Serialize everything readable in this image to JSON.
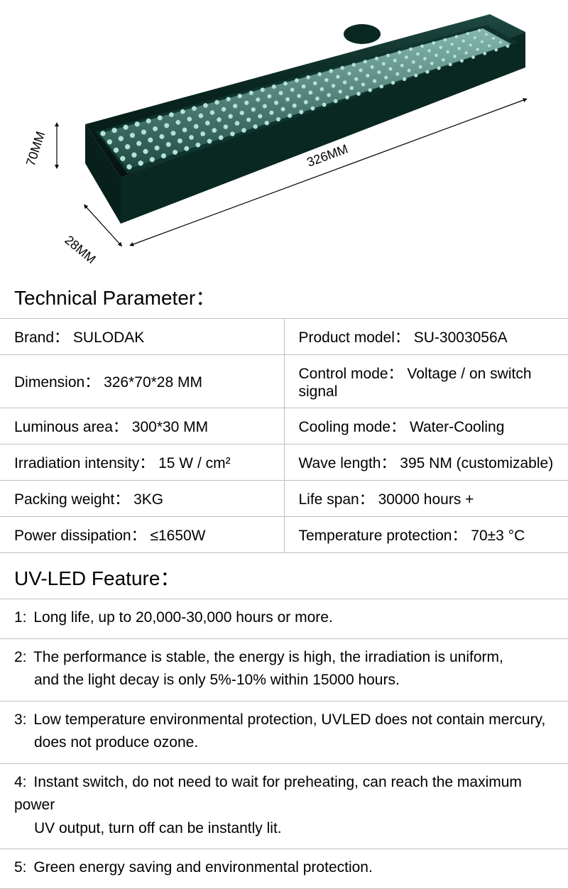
{
  "dimensions": {
    "height_label": "70MM",
    "depth_label": "28MM",
    "length_label": "326MM"
  },
  "device_colors": {
    "body": "#0a2822",
    "body_highlight": "#183d36",
    "panel_bg": "#2a6158",
    "led_color": "#b6e2da",
    "led_inner": "#7db7ad"
  },
  "sections": {
    "tech_title": "Technical Parameter：",
    "feature_title": "UV-LED Feature："
  },
  "specs": [
    {
      "l_label": "Brand：",
      "l_value": "SULODAK",
      "r_label": "Product model：",
      "r_value": "SU-3003056A"
    },
    {
      "l_label": "Dimension：",
      "l_value": "326*70*28 MM",
      "r_label": "Control mode：",
      "r_value": "Voltage / on switch signal"
    },
    {
      "l_label": "Luminous area：",
      "l_value": "300*30 MM",
      "r_label": "Cooling mode：",
      "r_value": "Water-Cooling"
    },
    {
      "l_label": "Irradiation intensity：",
      "l_value": "15 W / cm²",
      "r_label": "Wave length：",
      "r_value": "395 NM (customizable)"
    },
    {
      "l_label": "Packing weight：",
      "l_value": "3KG",
      "r_label": "Life span：",
      "r_value": "30000 hours +"
    },
    {
      "l_label": "Power dissipation：",
      "l_value": "≤1650W",
      "r_label": "Temperature protection：",
      "r_value": "70±3 °C"
    }
  ],
  "features": [
    {
      "num": "1:",
      "text": "Long life, up to 20,000-30,000 hours or more.",
      "cont": ""
    },
    {
      "num": "2:",
      "text": "The performance  is stable, the energy is high, the irradiation is uniform,",
      "cont": "and the light decay is only 5%-10% within 15000 hours."
    },
    {
      "num": "3:",
      "text": "Low temperature environmental protection, UVLED does not contain mercury,",
      "cont": "does not produce ozone."
    },
    {
      "num": "4:",
      "text": "Instant switch, do not need to wait for preheating, can reach the maximum power",
      "cont": "UV output, turn off can be instantly lit."
    },
    {
      "num": "5:",
      "text": "Green energy saving and environmental protection.",
      "cont": ""
    }
  ]
}
